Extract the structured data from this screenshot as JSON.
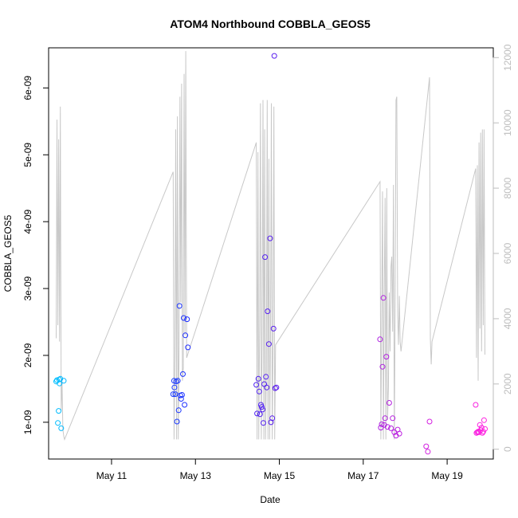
{
  "chart_data": {
    "type": "scatter",
    "title": "ATOM4 Northbound COBBLA_GEOS5",
    "xlabel": "Date",
    "ylabel": "COBBLA_GEOS5",
    "x_unit": "day of May",
    "xlim": [
      9.5,
      20.1
    ],
    "ylim": [
      4.5e-10,
      6.6e-09
    ],
    "y2lim": [
      -300,
      12300
    ],
    "x_ticks": [
      11,
      13,
      15,
      17,
      19
    ],
    "x_tick_labels": [
      "May 11",
      "May 13",
      "May 15",
      "May 17",
      "May 19"
    ],
    "y_ticks": [
      1e-09,
      2e-09,
      3e-09,
      4e-09,
      5e-09,
      6e-09
    ],
    "y_tick_labels": [
      "1e-09",
      "2e-09",
      "3e-09",
      "4e-09",
      "5e-09",
      "6e-09"
    ],
    "y2_ticks": [
      0,
      2000,
      4000,
      6000,
      8000,
      10000,
      12000
    ],
    "y2_tick_labels": [
      "0",
      "2000",
      "4000",
      "6000",
      "8000",
      "10000",
      "12000"
    ],
    "grid": false,
    "series": [
      {
        "name": "COBBLA_GEOS5",
        "kind": "points",
        "color_scale": [
          "#00bfff",
          "#2020ff",
          "#9020e0",
          "#ff20e0"
        ],
        "x": [
          9.68,
          9.7,
          9.72,
          9.74,
          9.75,
          9.76,
          9.78,
          9.8,
          9.86,
          12.47,
          12.49,
          12.5,
          12.52,
          12.54,
          12.56,
          12.58,
          12.6,
          12.62,
          12.64,
          12.66,
          12.68,
          12.7,
          12.72,
          12.74,
          12.76,
          12.8,
          12.82,
          14.45,
          14.47,
          14.5,
          14.52,
          14.54,
          14.56,
          14.58,
          14.6,
          14.62,
          14.64,
          14.66,
          14.68,
          14.7,
          14.72,
          14.75,
          14.78,
          14.8,
          14.83,
          14.86,
          14.88,
          14.9,
          14.93,
          17.4,
          17.42,
          17.44,
          17.46,
          17.48,
          17.5,
          17.52,
          17.55,
          17.58,
          17.62,
          17.66,
          17.7,
          17.74,
          17.78,
          17.82,
          17.86,
          18.5,
          18.54,
          18.58,
          19.68,
          19.7,
          19.72,
          19.74,
          19.76,
          19.78,
          19.8,
          19.82,
          19.84,
          19.86,
          19.88,
          19.9
        ],
        "y": [
          1.61e-09,
          1.63e-09,
          9.9e-10,
          1.17e-09,
          1.64e-09,
          1.58e-09,
          1.65e-09,
          9.1e-10,
          1.62e-09,
          1.42e-09,
          1.62e-09,
          1.52e-09,
          1.42e-09,
          1.61e-09,
          1.01e-09,
          1.62e-09,
          1.18e-09,
          2.74e-09,
          1.4e-09,
          1.35e-09,
          1.41e-09,
          1.72e-09,
          2.56e-09,
          1.26e-09,
          2.3e-09,
          2.54e-09,
          2.12e-09,
          1.56e-09,
          1.13e-09,
          1.65e-09,
          1.46e-09,
          1.12e-09,
          1.26e-09,
          1.23e-09,
          1.19e-09,
          9.9e-10,
          1.57e-09,
          3.47e-09,
          1.68e-09,
          1.52e-09,
          2.66e-09,
          2.17e-09,
          3.75e-09,
          1e-09,
          1.06e-09,
          2.4e-09,
          6.48e-09,
          1.51e-09,
          1.52e-09,
          2.24e-09,
          9.2e-10,
          9.7e-10,
          1.83e-09,
          2.86e-09,
          9.6e-10,
          1.06e-09,
          1.98e-09,
          9.3e-10,
          1.29e-09,
          9.1e-10,
          1.06e-09,
          8.5e-10,
          8e-10,
          8.9e-10,
          8.3e-10,
          6.4e-10,
          5.6e-10,
          1.01e-09,
          1.26e-09,
          8.4e-10,
          8.5e-10,
          8.6e-10,
          8.5e-10,
          9.6e-10,
          8.8e-10,
          9.2e-10,
          8.4e-10,
          8.6e-10,
          1.03e-09,
          9e-10
        ]
      },
      {
        "name": "secondary line (right axis)",
        "kind": "line",
        "color": "#c8c8c8",
        "x": [
          9.68,
          9.7,
          9.72,
          9.74,
          9.76,
          9.78,
          9.8,
          9.82,
          9.84,
          9.86,
          9.88,
          12.47,
          12.49,
          12.51,
          12.53,
          12.55,
          12.57,
          12.59,
          12.61,
          12.63,
          12.65,
          12.67,
          12.69,
          12.71,
          12.73,
          12.75,
          12.77,
          12.79,
          14.45,
          14.47,
          14.49,
          14.51,
          14.53,
          14.55,
          14.57,
          14.59,
          14.61,
          14.63,
          14.65,
          14.67,
          14.69,
          14.71,
          14.73,
          14.75,
          14.77,
          14.79,
          14.81,
          14.83,
          14.85,
          14.87,
          14.89,
          14.91,
          17.4,
          17.42,
          17.44,
          17.46,
          17.48,
          17.5,
          17.52,
          17.54,
          17.56,
          17.58,
          17.6,
          17.62,
          17.64,
          17.66,
          17.68,
          17.7,
          17.72,
          17.74,
          17.76,
          17.78,
          17.8,
          17.82,
          17.84,
          17.86,
          17.88,
          17.9,
          18.58,
          18.6,
          18.62,
          18.64,
          19.68,
          19.7,
          19.72,
          19.74,
          19.76,
          19.78,
          19.8,
          19.82,
          19.84,
          19.86,
          19.88,
          19.9
        ],
        "y": [
          3400,
          10100,
          3800,
          9500,
          3300,
          10500,
          1200,
          2100,
          600,
          400,
          300,
          8500,
          300,
          3000,
          9800,
          300,
          10200,
          300,
          3100,
          10800,
          4500,
          11200,
          2100,
          2500,
          11500,
          3500,
          12200,
          2800,
          9400,
          300,
          9100,
          300,
          3800,
          10600,
          300,
          3200,
          10700,
          300,
          9800,
          300,
          2400,
          10700,
          300,
          8900,
          300,
          3600,
          10600,
          300,
          3200,
          10500,
          300,
          3200,
          8200,
          300,
          4300,
          7900,
          300,
          4600,
          7700,
          300,
          8000,
          900,
          1900,
          4800,
          3000,
          5600,
          5900,
          3600,
          8100,
          300,
          4200,
          10700,
          10800,
          4100,
          3200,
          4700,
          3300,
          3000,
          11400,
          3400,
          2600,
          3300,
          8600,
          2800,
          8700,
          2100,
          9400,
          3700,
          9700,
          3000,
          9800,
          3800,
          9800,
          2900
        ]
      }
    ]
  }
}
